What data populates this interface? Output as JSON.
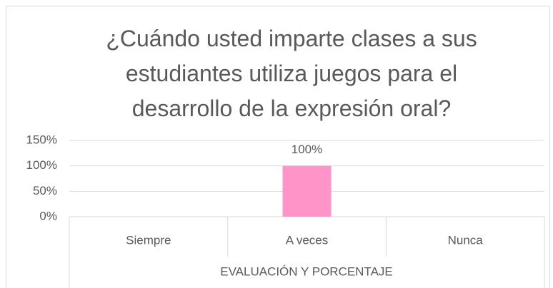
{
  "chart_data": {
    "type": "bar",
    "title": "¿Cuándo usted imparte clases a sus estudiantes utiliza juegos para el desarrollo de la expresión oral?",
    "x_label": "EVALUACIÓN Y PORCENTAJE",
    "categories": [
      "Siempre",
      "A veces",
      "Nunca"
    ],
    "values": [
      0,
      100,
      0
    ],
    "value_labels": [
      null,
      "100%",
      null
    ],
    "color": "#ff94c9",
    "ylim": [
      0,
      150
    ],
    "yticks": [
      {
        "value": 0,
        "label": "0%"
      },
      {
        "value": 50,
        "label": "50%"
      },
      {
        "value": 100,
        "label": "100%"
      },
      {
        "value": 150,
        "label": "150%"
      }
    ],
    "grid": true
  }
}
